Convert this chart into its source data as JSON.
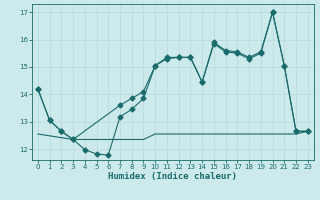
{
  "xlabel": "Humidex (Indice chaleur)",
  "bg_color": "#cce9eb",
  "grid_color": "#b8d8da",
  "line_color": "#1a6b6b",
  "xlim": [
    -0.5,
    23.5
  ],
  "ylim": [
    11.6,
    17.3
  ],
  "xticks": [
    0,
    1,
    2,
    3,
    4,
    5,
    6,
    7,
    8,
    9,
    10,
    11,
    12,
    13,
    14,
    15,
    16,
    17,
    18,
    19,
    20,
    21,
    22,
    23
  ],
  "yticks": [
    12,
    13,
    14,
    15,
    16,
    17
  ],
  "line1_x": [
    0,
    1,
    2,
    3,
    4,
    5,
    6,
    7,
    8,
    9,
    10,
    11,
    12,
    13,
    14,
    15,
    16,
    17,
    18,
    19,
    20,
    21,
    22,
    23
  ],
  "line1_y": [
    14.2,
    13.05,
    12.65,
    12.35,
    11.98,
    11.82,
    11.78,
    13.18,
    13.45,
    13.85,
    15.05,
    15.3,
    15.35,
    15.35,
    14.45,
    15.9,
    15.6,
    15.55,
    15.35,
    15.55,
    17.0,
    15.05,
    12.65,
    12.65
  ],
  "line2_x": [
    0,
    1,
    2,
    3,
    7,
    8,
    9,
    10,
    11,
    12,
    13,
    14,
    15,
    16,
    17,
    18,
    19,
    20,
    21,
    22,
    23
  ],
  "line2_y": [
    14.2,
    13.05,
    12.65,
    12.35,
    13.6,
    13.85,
    14.1,
    15.05,
    15.35,
    15.35,
    15.35,
    14.45,
    15.85,
    15.55,
    15.5,
    15.3,
    15.5,
    17.0,
    15.05,
    12.65,
    12.65
  ],
  "line3_x": [
    0,
    3,
    4,
    5,
    6,
    7,
    8,
    9,
    10,
    11,
    12,
    13,
    14,
    15,
    16,
    17,
    18,
    19,
    20,
    21,
    22,
    23
  ],
  "line3_y": [
    12.55,
    12.35,
    12.35,
    12.35,
    12.35,
    12.35,
    12.35,
    12.35,
    12.55,
    12.55,
    12.55,
    12.55,
    12.55,
    12.55,
    12.55,
    12.55,
    12.55,
    12.55,
    12.55,
    12.55,
    12.55,
    12.65
  ]
}
